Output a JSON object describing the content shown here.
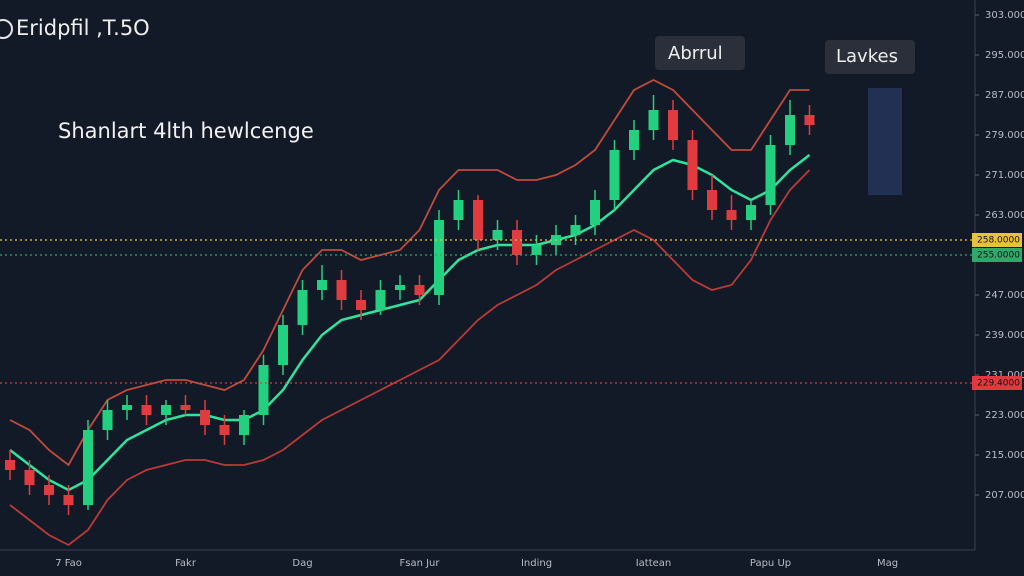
{
  "chart_data": {
    "type": "candlestick",
    "title": "Eridpfil ,T.5O",
    "annotation": "Shanlart 4lth hewlcenge",
    "callouts": [
      "Abrrul",
      "Lavkes"
    ],
    "categories": [
      null,
      null,
      null,
      "7 Fao",
      null,
      null,
      null,
      null,
      null,
      "Fakr",
      null,
      null,
      null,
      null,
      null,
      "Dag",
      null,
      null,
      null,
      null,
      null,
      "Fsan Jur",
      null,
      null,
      null,
      null,
      null,
      "Inding",
      null,
      null,
      null,
      null,
      null,
      "Iattean",
      null,
      null,
      null,
      null,
      null,
      "Papu Up",
      null,
      null,
      null,
      null,
      null,
      "Mag"
    ],
    "open": [
      214,
      212,
      209,
      207,
      205,
      220,
      224,
      225,
      223,
      225,
      224,
      221,
      219,
      223,
      233,
      241,
      248,
      250,
      246,
      244,
      248,
      249,
      247,
      262,
      266,
      258,
      260,
      255,
      257,
      259,
      261,
      266,
      276,
      280,
      284,
      278,
      268,
      264,
      262,
      265,
      277,
      283,
      null,
      null,
      null,
      null
    ],
    "high": [
      216,
      214,
      211,
      209,
      222,
      226,
      227,
      227,
      226,
      227,
      226,
      223,
      224,
      235,
      243,
      250,
      253,
      252,
      248,
      250,
      251,
      251,
      264,
      268,
      267,
      262,
      262,
      259,
      261,
      263,
      268,
      278,
      282,
      287,
      286,
      280,
      271,
      267,
      266,
      279,
      286,
      285,
      null,
      null,
      null,
      null
    ],
    "low": [
      210,
      207,
      205,
      203,
      204,
      218,
      222,
      221,
      221,
      223,
      219,
      217,
      217,
      221,
      231,
      239,
      246,
      244,
      242,
      243,
      246,
      245,
      245,
      260,
      256,
      256,
      253,
      253,
      255,
      257,
      259,
      264,
      274,
      278,
      276,
      266,
      262,
      260,
      260,
      263,
      275,
      279,
      null,
      null,
      null,
      null
    ],
    "close": [
      212,
      209,
      207,
      205,
      220,
      224,
      225,
      223,
      225,
      224,
      221,
      219,
      223,
      233,
      241,
      248,
      250,
      246,
      244,
      248,
      249,
      247,
      262,
      266,
      258,
      260,
      255,
      257,
      259,
      261,
      266,
      276,
      280,
      284,
      278,
      268,
      264,
      262,
      265,
      277,
      283,
      281,
      null,
      null,
      null,
      null
    ],
    "series": [
      {
        "name": "ma",
        "color": "#2ee59d",
        "values": [
          216,
          213,
          210,
          208,
          210,
          214,
          218,
          220,
          222,
          223,
          223,
          222,
          222,
          224,
          228,
          234,
          239,
          242,
          243,
          244,
          245,
          246,
          250,
          254,
          256,
          257,
          257,
          257,
          258,
          259,
          261,
          264,
          268,
          272,
          274,
          273,
          271,
          268,
          266,
          268,
          272,
          275,
          null,
          null,
          null,
          null
        ]
      },
      {
        "name": "upper",
        "color": "#e2533f",
        "values": [
          222,
          220,
          216,
          213,
          220,
          226,
          228,
          229,
          230,
          230,
          229,
          228,
          230,
          236,
          244,
          252,
          256,
          256,
          254,
          255,
          256,
          260,
          268,
          272,
          272,
          272,
          270,
          270,
          271,
          273,
          276,
          282,
          288,
          290,
          288,
          284,
          280,
          276,
          276,
          282,
          288,
          288,
          null,
          null,
          null,
          null
        ]
      },
      {
        "name": "lower",
        "color": "#d9413a",
        "values": [
          205,
          202,
          199,
          197,
          200,
          206,
          210,
          212,
          213,
          214,
          214,
          213,
          213,
          214,
          216,
          219,
          222,
          224,
          226,
          228,
          230,
          232,
          234,
          238,
          242,
          245,
          247,
          249,
          252,
          254,
          256,
          258,
          260,
          258,
          254,
          250,
          248,
          249,
          254,
          262,
          268,
          272,
          null,
          null,
          null,
          null
        ]
      }
    ],
    "levels": [
      {
        "value": 258,
        "label": "258.0000",
        "color": "#e8c33a"
      },
      {
        "value": 255,
        "label": "255.0000",
        "color": "#2fa86a"
      },
      {
        "value": 229.4,
        "label": "229.4000",
        "color": "#e0393e"
      }
    ],
    "ylim": [
      196,
      306
    ],
    "yticks": [
      {
        "value": 303,
        "label": "303.0000"
      },
      {
        "value": 295,
        "label": "295.0000"
      },
      {
        "value": 287,
        "label": "287.0000"
      },
      {
        "value": 279,
        "label": "279.0000"
      },
      {
        "value": 271,
        "label": "271.0000"
      },
      {
        "value": 263,
        "label": "263.0000"
      },
      {
        "value": 247,
        "label": "247.0000"
      },
      {
        "value": 239,
        "label": "239.0000"
      },
      {
        "value": 231,
        "label": "231.0000"
      },
      {
        "value": 223,
        "label": "223.0000"
      },
      {
        "value": 215,
        "label": "215.0000"
      },
      {
        "value": 207,
        "label": "207.0000"
      }
    ]
  }
}
